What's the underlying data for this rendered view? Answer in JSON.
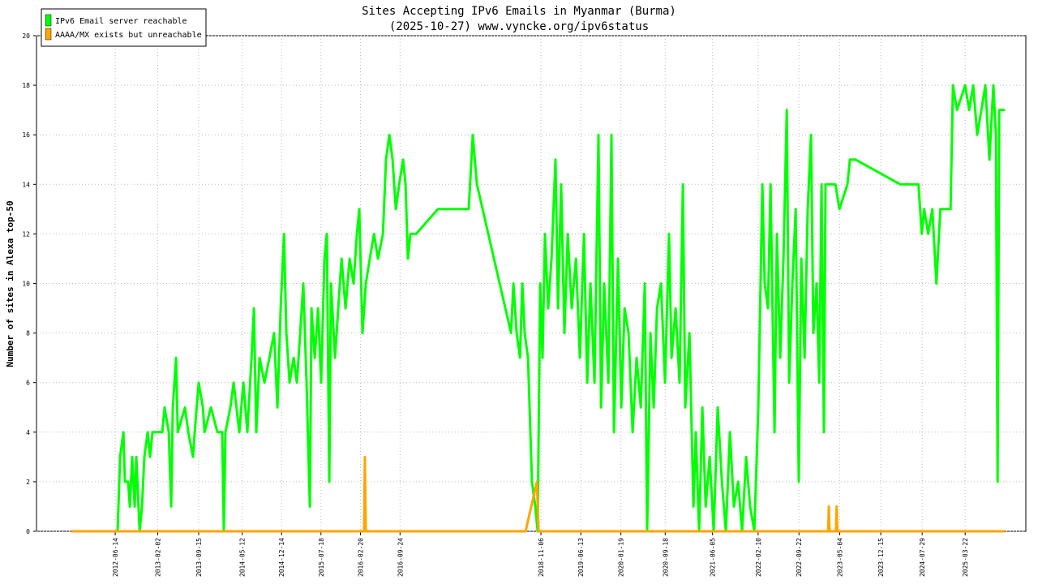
{
  "chart_data": {
    "type": "line",
    "title": "Sites Accepting IPv6 Emails in Myanmar (Burma)",
    "subtitle": "(2025-10-27) www.vyncke.org/ipv6status",
    "y_label": "Number of sites in Alexa top-50",
    "xlim": [
      "2011-04-09",
      "2026-02-18"
    ],
    "xticks": [
      "2012-06-14",
      "2013-02-02",
      "2013-09-15",
      "2014-05-12",
      "2014-12-14",
      "2015-07-18",
      "2016-02-20",
      "2016-09-24",
      "2018-11-06",
      "2019-06-13",
      "2020-01-19",
      "2020-09-18",
      "2021-06-05",
      "2022-02-10",
      "2022-09-22",
      "2023-05-04",
      "2023-12-15",
      "2024-07-29",
      "2025-03-22"
    ],
    "ylim": [
      0,
      20
    ],
    "yticks": [
      0,
      2,
      4,
      6,
      8,
      10,
      12,
      14,
      16,
      18,
      20
    ],
    "grid": true,
    "legend": "upper left",
    "series": [
      {
        "name": "IPv6 Email server reachable",
        "color": "#00ff00",
        "x": [
          "2012-06-27",
          "2012-07-11",
          "2012-07-29",
          "2012-08-06",
          "2012-08-24",
          "2012-09-02",
          "2012-09-15",
          "2012-09-29",
          "2012-10-08",
          "2012-10-26",
          "2012-11-08",
          "2012-11-21",
          "2012-12-09",
          "2012-12-22",
          "2013-01-05",
          "2013-02-27",
          "2013-03-12",
          "2013-04-04",
          "2013-04-17",
          "2013-04-26",
          "2013-05-14",
          "2013-05-23",
          "2013-07-02",
          "2013-07-20",
          "2013-08-15",
          "2013-08-24",
          "2013-09-15",
          "2013-10-08",
          "2013-10-17",
          "2013-11-21",
          "2013-12-27",
          "2014-01-22",
          "2014-01-31",
          "2014-02-09",
          "2014-03-08",
          "2014-03-26",
          "2014-04-26",
          "2014-05-18",
          "2014-06-09",
          "2014-07-02",
          "2014-07-15",
          "2014-07-28",
          "2014-08-15",
          "2014-09-11",
          "2014-10-08",
          "2014-11-03",
          "2014-11-21",
          "2014-12-09",
          "2014-12-27",
          "2015-01-09",
          "2015-01-27",
          "2015-02-18",
          "2015-03-08",
          "2015-03-26",
          "2015-04-12",
          "2015-04-30",
          "2015-05-18",
          "2015-05-27",
          "2015-06-14",
          "2015-07-02",
          "2015-07-19",
          "2015-08-06",
          "2015-08-19",
          "2015-09-02",
          "2015-09-11",
          "2015-10-03",
          "2015-10-21",
          "2015-11-08",
          "2015-11-30",
          "2015-12-22",
          "2016-01-13",
          "2016-01-31",
          "2016-02-13",
          "2016-03-02",
          "2016-03-20",
          "2016-04-11",
          "2016-05-04",
          "2016-05-26",
          "2016-06-22",
          "2016-07-09",
          "2016-07-27",
          "2016-08-14",
          "2016-09-01",
          "2016-09-19",
          "2016-10-11",
          "2016-10-24",
          "2016-11-06",
          "2016-11-20",
          "2016-12-21",
          "2017-04-20",
          "2017-10-06",
          "2017-10-28",
          "2017-11-20",
          "2018-05-26",
          "2018-06-08",
          "2018-06-26",
          "2018-07-14",
          "2018-07-27",
          "2018-08-09",
          "2018-08-27",
          "2018-09-18",
          "2018-10-06",
          "2018-10-19",
          "2018-11-02",
          "2018-11-15",
          "2018-11-28",
          "2018-12-16",
          "2019-01-03",
          "2019-01-25",
          "2019-02-08",
          "2019-02-25",
          "2019-03-15",
          "2019-04-02",
          "2019-04-24",
          "2019-05-17",
          "2019-06-08",
          "2019-06-30",
          "2019-07-18",
          "2019-08-05",
          "2019-08-27",
          "2019-09-18",
          "2019-10-02",
          "2019-10-19",
          "2019-11-11",
          "2019-11-28",
          "2019-12-12",
          "2020-01-03",
          "2020-01-21",
          "2020-02-08",
          "2020-03-01",
          "2020-03-23",
          "2020-04-14",
          "2020-05-07",
          "2020-05-29",
          "2020-06-11",
          "2020-06-29",
          "2020-07-17",
          "2020-08-04",
          "2020-08-26",
          "2020-09-17",
          "2020-10-09",
          "2020-10-23",
          "2020-11-14",
          "2020-12-06",
          "2020-12-24",
          "2021-01-06",
          "2021-01-29",
          "2021-02-20",
          "2021-03-05",
          "2021-03-23",
          "2021-04-10",
          "2021-04-28",
          "2021-05-20",
          "2021-06-11",
          "2021-07-03",
          "2021-07-26",
          "2021-08-17",
          "2021-09-08",
          "2021-09-30",
          "2021-10-23",
          "2021-11-14",
          "2021-12-06",
          "2021-12-28",
          "2022-01-20",
          "2022-02-11",
          "2022-03-05",
          "2022-03-18",
          "2022-04-05",
          "2022-04-19",
          "2022-05-11",
          "2022-05-24",
          "2022-06-11",
          "2022-06-29",
          "2022-07-17",
          "2022-07-30",
          "2022-08-17",
          "2022-09-04",
          "2022-09-21",
          "2022-10-05",
          "2022-10-23",
          "2022-11-09",
          "2022-11-27",
          "2022-12-10",
          "2022-12-28",
          "2023-01-11",
          "2023-01-24",
          "2023-02-06",
          "2023-02-15",
          "2023-04-10",
          "2023-05-02",
          "2023-06-15",
          "2023-06-29",
          "2023-07-30",
          "2024-03-31",
          "2024-07-09",
          "2024-07-27",
          "2024-08-09",
          "2024-08-31",
          "2024-09-23",
          "2024-10-15",
          "2024-11-06",
          "2025-01-01",
          "2025-01-14",
          "2025-02-05",
          "2025-03-22",
          "2025-04-13",
          "2025-05-05",
          "2025-05-27",
          "2025-06-19",
          "2025-07-11",
          "2025-08-02",
          "2025-08-24",
          "2025-09-07",
          "2025-09-16",
          "2025-09-25",
          "2025-10-27"
        ],
        "values": [
          0,
          3,
          4,
          2,
          2,
          1,
          3,
          1,
          3,
          0,
          1,
          3,
          4,
          3,
          4,
          4,
          5,
          4,
          1,
          5,
          7,
          4,
          5,
          4,
          3,
          4,
          6,
          5,
          4,
          5,
          4,
          4,
          0,
          4,
          5,
          6,
          4,
          6,
          4,
          7,
          9,
          4,
          7,
          6,
          7,
          8,
          5,
          9,
          12,
          8,
          6,
          7,
          6,
          8,
          10,
          6,
          1,
          9,
          7,
          9,
          6,
          11,
          12,
          2,
          10,
          7,
          9,
          11,
          9,
          11,
          10,
          12,
          13,
          8,
          10,
          11,
          12,
          11,
          12,
          15,
          16,
          15,
          13,
          14,
          15,
          14,
          11,
          12,
          12,
          13,
          13,
          16,
          14,
          8,
          10,
          8,
          7,
          10,
          8,
          7,
          2,
          1,
          0,
          10,
          7,
          12,
          9,
          11,
          15,
          9,
          14,
          8,
          12,
          9,
          11,
          7,
          12,
          6,
          10,
          6,
          16,
          5,
          10,
          6,
          16,
          4,
          11,
          5,
          9,
          8,
          4,
          7,
          5,
          10,
          0,
          8,
          5,
          9,
          10,
          6,
          12,
          7,
          9,
          6,
          14,
          5,
          8,
          1,
          4,
          0,
          5,
          1,
          3,
          0,
          5,
          2,
          0,
          4,
          1,
          2,
          0,
          3,
          1,
          0,
          5,
          14,
          10,
          9,
          14,
          4,
          12,
          7,
          11,
          17,
          6,
          10,
          13,
          2,
          11,
          7,
          13,
          16,
          8,
          10,
          6,
          14,
          4,
          14,
          14,
          13,
          14,
          15,
          15,
          14,
          14,
          12,
          13,
          12,
          13,
          10,
          13,
          13,
          18,
          17,
          18,
          17,
          18,
          16,
          17,
          18,
          15,
          18,
          16,
          2,
          17,
          17
        ]
      },
      {
        "name": "AAAA/MX exists but unreachable",
        "color": "#ffa500",
        "x": [
          "2011-10-18",
          "2016-03-11",
          "2016-03-15",
          "2016-03-20",
          "2018-08-14",
          "2018-10-15",
          "2018-10-24",
          "2023-03-01",
          "2023-03-05",
          "2023-03-09",
          "2023-04-13",
          "2023-04-17",
          "2023-04-21",
          "2025-10-27"
        ],
        "values": [
          0,
          0,
          3,
          0,
          0,
          2,
          0,
          0,
          1,
          0,
          0,
          1,
          0,
          0
        ]
      }
    ]
  }
}
